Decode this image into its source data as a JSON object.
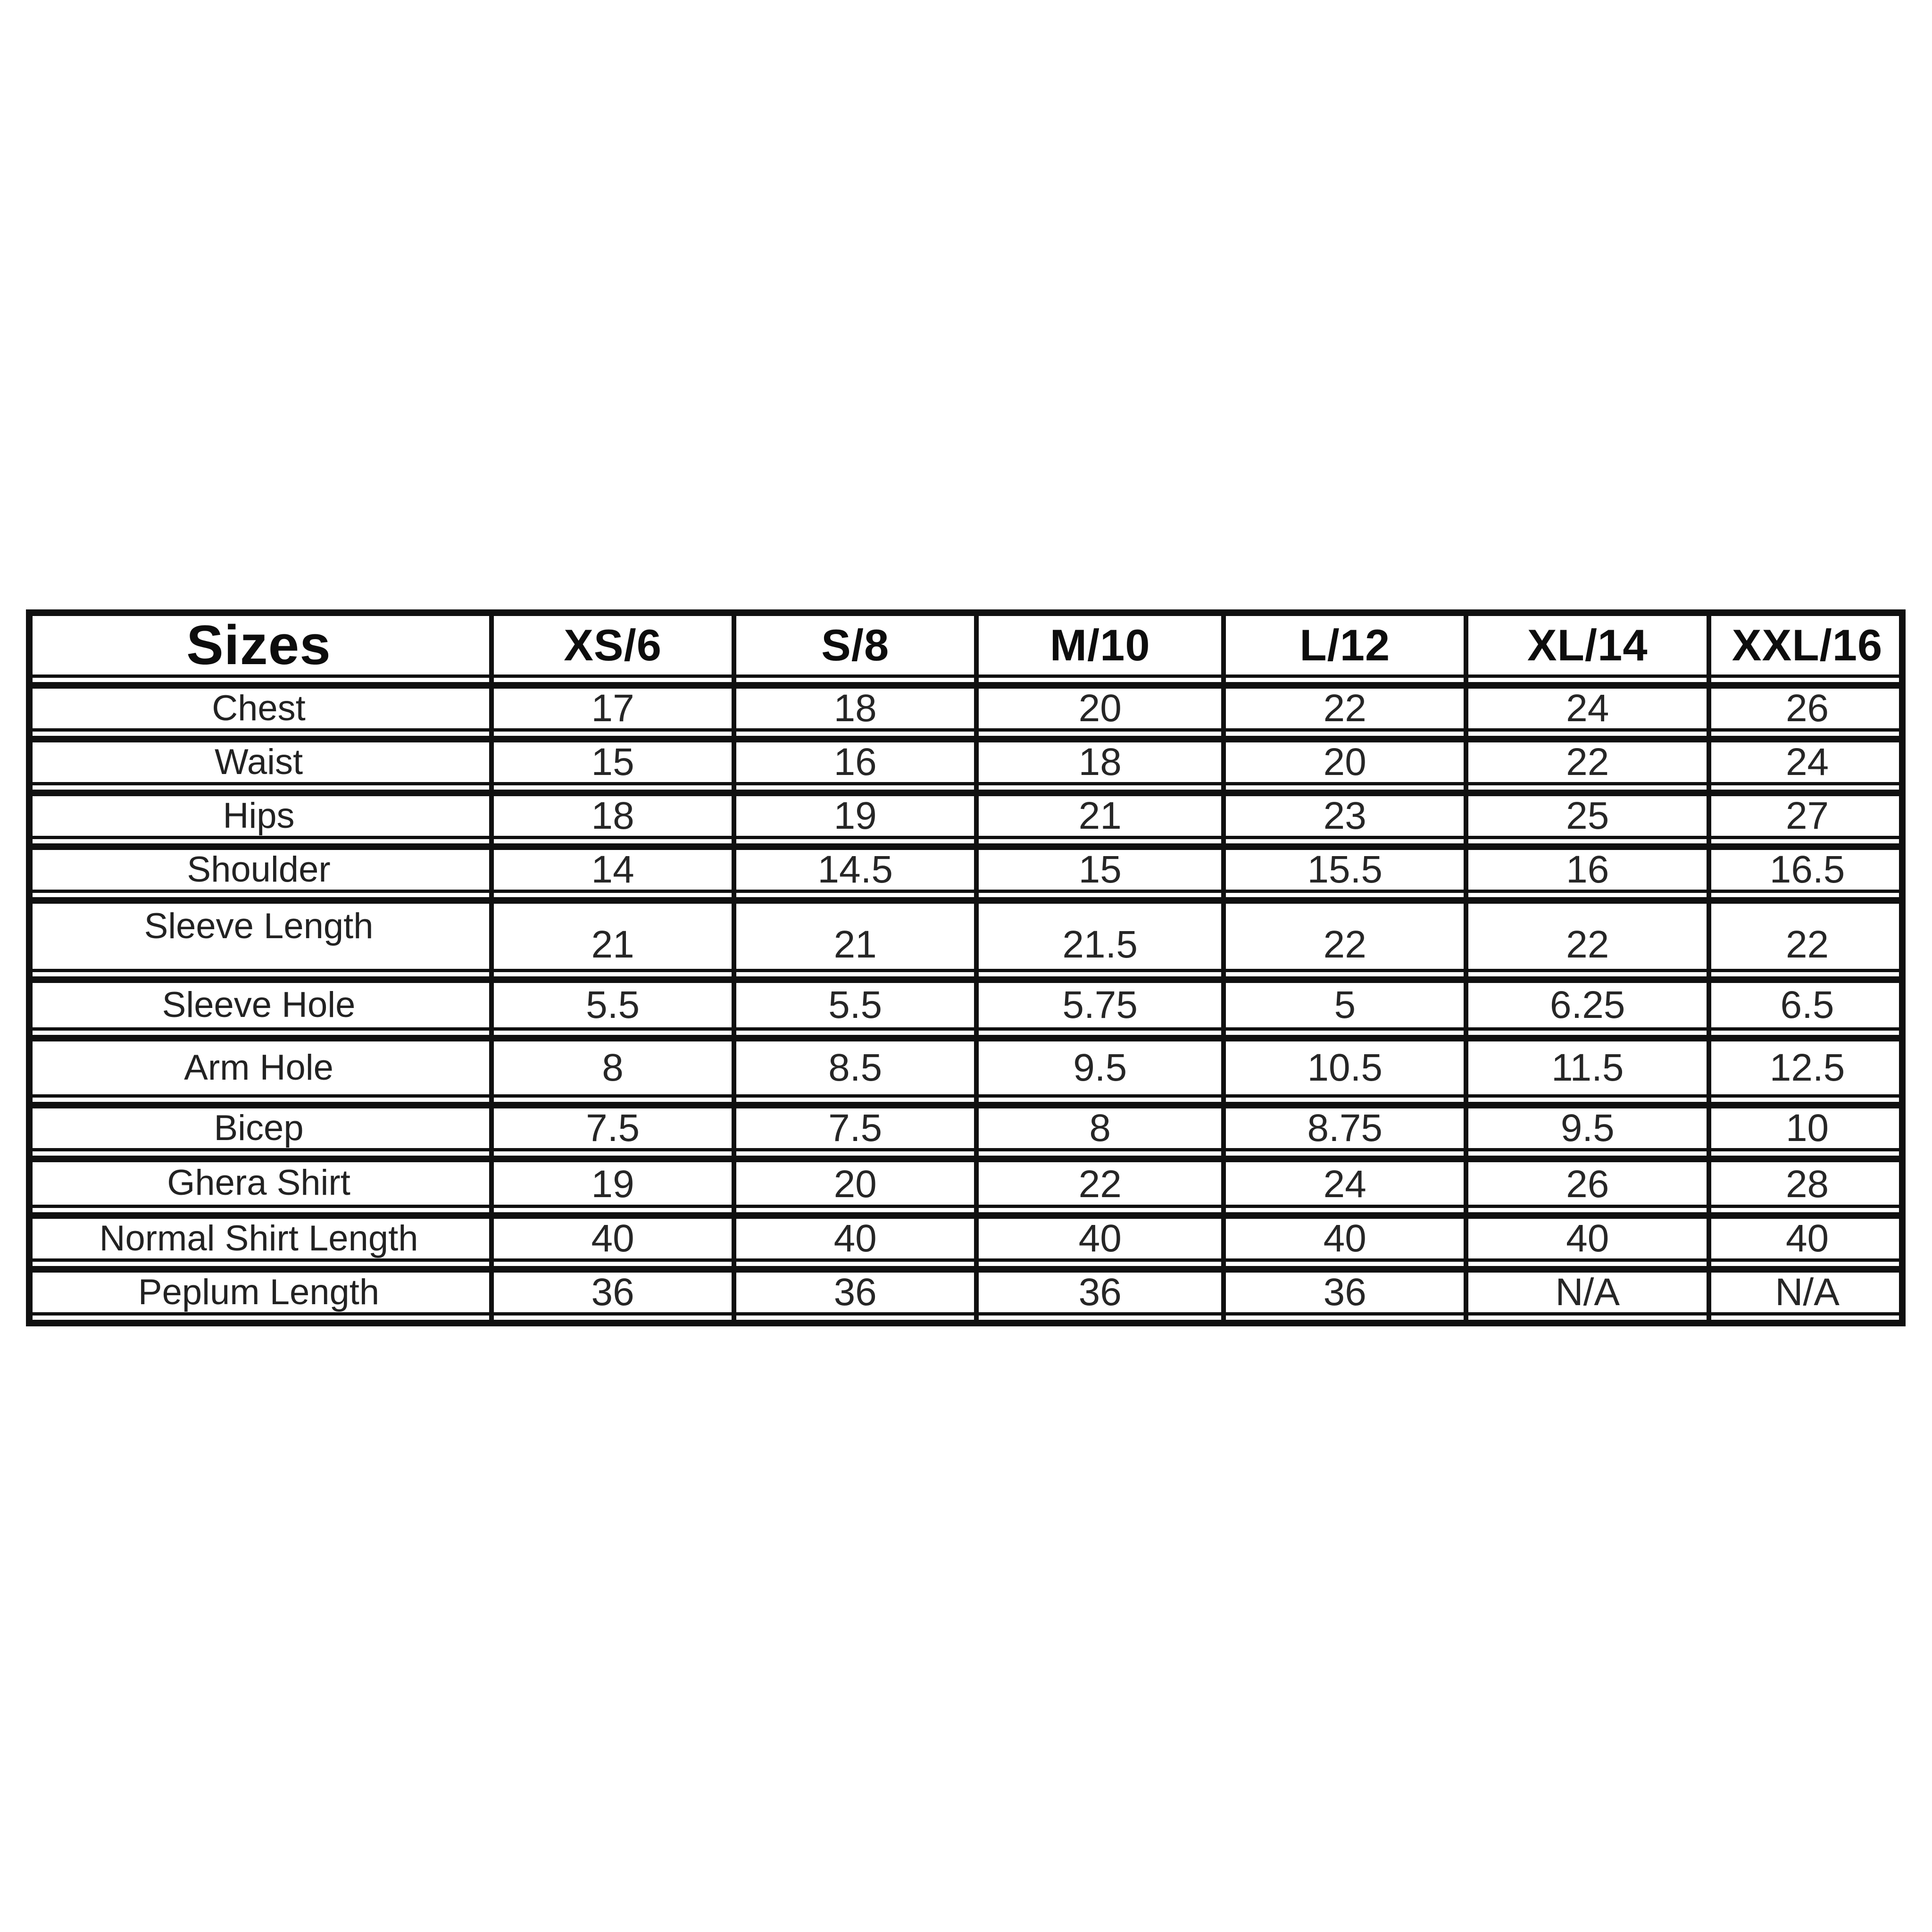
{
  "chart_data": {
    "type": "table",
    "title": "Sizes",
    "columns": [
      "Sizes",
      "XS/6",
      "S/8",
      "M/10",
      "L/12",
      "XL/14",
      "XXL/16"
    ],
    "rows": [
      [
        "Chest",
        17,
        18,
        20,
        22,
        24,
        26
      ],
      [
        "Waist",
        15,
        16,
        18,
        20,
        22,
        24
      ],
      [
        "Hips",
        18,
        19,
        21,
        23,
        25,
        27
      ],
      [
        "Shoulder",
        14,
        14.5,
        15,
        15.5,
        16,
        16.5
      ],
      [
        "Sleeve Length",
        21,
        21,
        21.5,
        22,
        22,
        22
      ],
      [
        "Sleeve Hole",
        5.5,
        5.5,
        5.75,
        5,
        6.25,
        6.5
      ],
      [
        "Arm Hole",
        8,
        8.5,
        9.5,
        10.5,
        11.5,
        12.5
      ],
      [
        "Bicep",
        7.5,
        7.5,
        8,
        8.75,
        9.5,
        10
      ],
      [
        "Ghera Shirt",
        19,
        20,
        22,
        24,
        26,
        28
      ],
      [
        "Normal Shirt Length",
        40,
        40,
        40,
        40,
        40,
        40
      ],
      [
        "Peplum Length",
        36,
        36,
        36,
        36,
        "N/A",
        "N/A"
      ]
    ],
    "layout": {
      "grid": "on",
      "header_position": "top-row",
      "row_label_column": "left"
    },
    "colors": {
      "line": "#101010",
      "background": "#ffffff",
      "header_text": "#0d0d0d",
      "body_text": "#262626"
    }
  }
}
